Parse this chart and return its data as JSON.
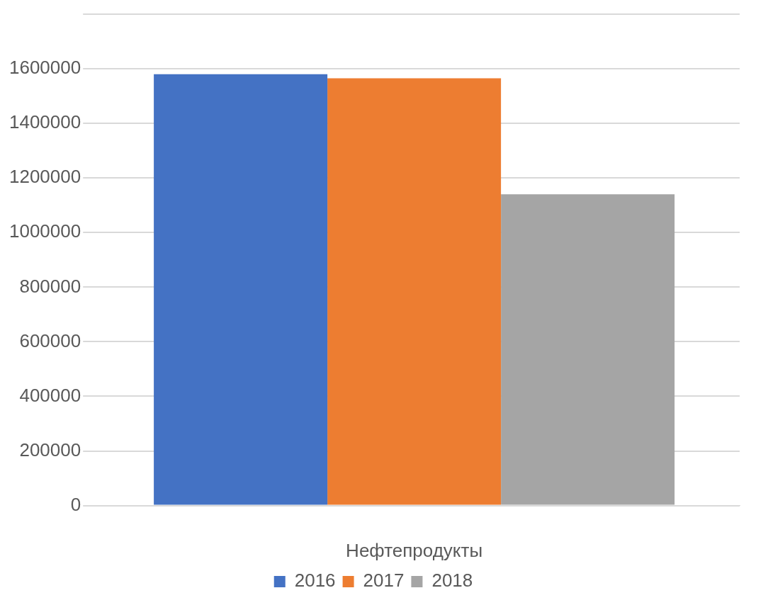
{
  "chart_data": {
    "type": "bar",
    "xlabel": "Нефтепродукты",
    "categories": [
      null
    ],
    "series": [
      {
        "name": "2016",
        "color": "#4472c4",
        "values": [
          1580000
        ]
      },
      {
        "name": "2017",
        "color": "#ed7d31",
        "values": [
          1565000
        ]
      },
      {
        "name": "2018",
        "color": "#a5a5a5",
        "values": [
          1140000
        ]
      }
    ],
    "ylim": [
      0,
      1800000
    ],
    "yticks": [
      0,
      200000,
      400000,
      600000,
      800000,
      1000000,
      1200000,
      1400000,
      1600000,
      {
        "value": 1800000,
        "label": null
      }
    ],
    "grid": "y",
    "legend": "bottom"
  }
}
